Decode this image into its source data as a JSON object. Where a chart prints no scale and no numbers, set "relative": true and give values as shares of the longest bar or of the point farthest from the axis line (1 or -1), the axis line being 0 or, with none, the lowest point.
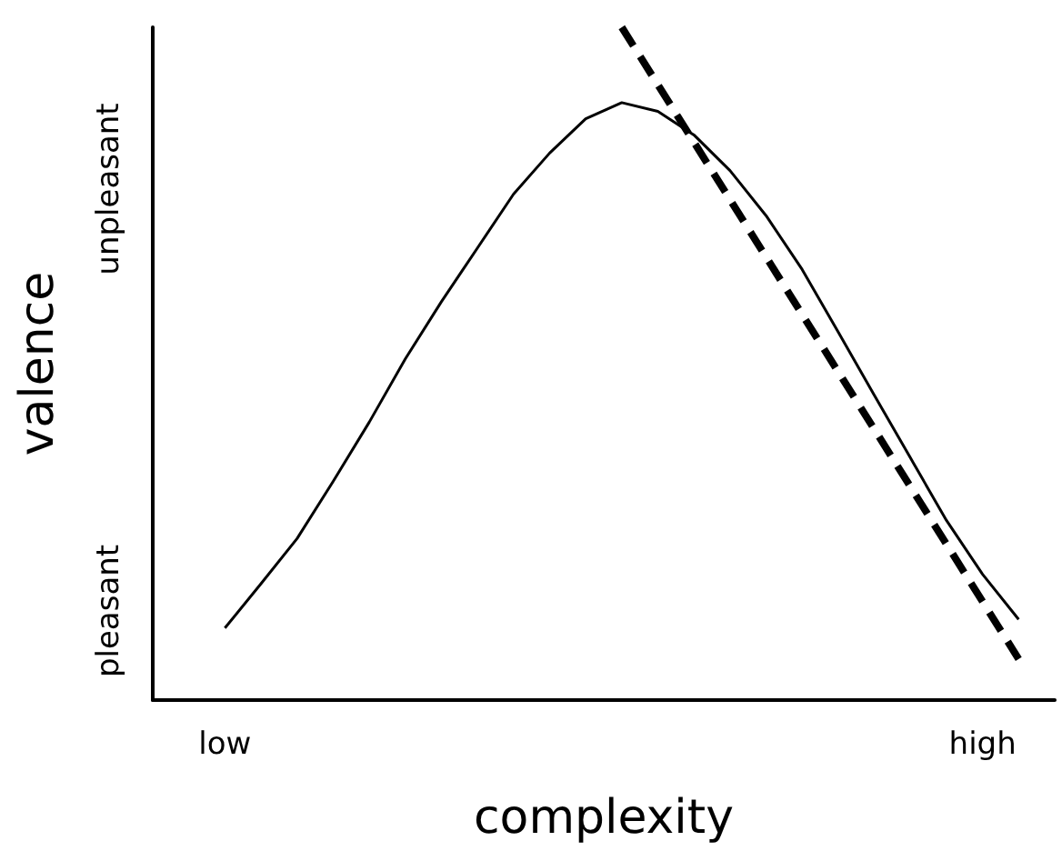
{
  "chart_data": {
    "type": "line",
    "relative": true,
    "xlabel": "complexity",
    "ylabel": "valence",
    "categories": [
      null,
      null,
      "low",
      null,
      null,
      null,
      null,
      null,
      null,
      null,
      null,
      null,
      null,
      null,
      null,
      null,
      null,
      null,
      null,
      null,
      null,
      null,
      null,
      "high",
      null,
      null
    ],
    "series": [
      {
        "color": "#000000",
        "line_style": "solid",
        "values": [
          null,
          null,
          0.107,
          0.173,
          0.24,
          0.325,
          0.413,
          0.507,
          0.592,
          0.672,
          0.752,
          0.813,
          0.864,
          0.888,
          0.875,
          0.84,
          0.787,
          0.72,
          0.64,
          0.547,
          0.453,
          0.36,
          0.267,
          0.187,
          0.12,
          null
        ]
      },
      {
        "color": "#000000",
        "line_style": "dashed",
        "values": [
          null,
          null,
          null,
          null,
          null,
          null,
          null,
          null,
          null,
          null,
          null,
          null,
          null,
          1,
          null,
          null,
          null,
          null,
          null,
          null,
          null,
          null,
          null,
          null,
          0.061,
          null
        ]
      }
    ],
    "annotations": [
      "pleasant",
      "unpleasant"
    ],
    "marker": "none",
    "grid": false
  }
}
